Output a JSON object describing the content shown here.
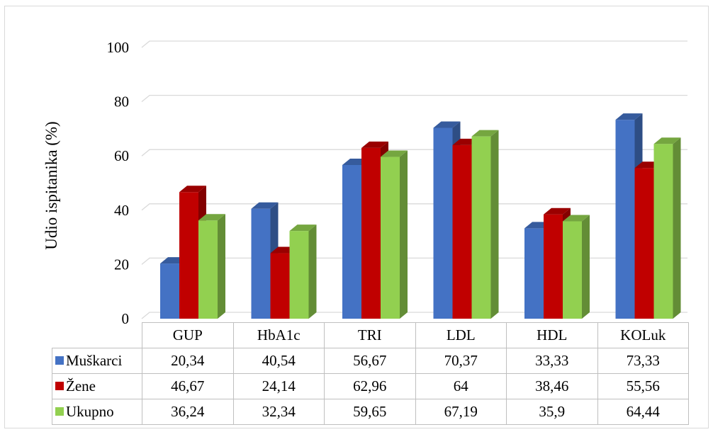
{
  "chart_data": {
    "type": "bar",
    "title": "",
    "xlabel": "",
    "ylabel": "Udio ispitanika (%)",
    "ylim": [
      0,
      100
    ],
    "yticks": [
      0,
      20,
      40,
      60,
      80,
      100
    ],
    "grid": true,
    "legend": "data-table",
    "categories": [
      "GUP",
      "HbA1c",
      "TRI",
      "LDL",
      "HDL",
      "KOLuk"
    ],
    "series": [
      {
        "name": "Muškarci",
        "color": "#4472c4",
        "values": [
          20.34,
          40.54,
          56.67,
          70.37,
          33.33,
          73.33
        ],
        "labels": [
          "20,34",
          "40,54",
          "56,67",
          "70,37",
          "33,33",
          "73,33"
        ]
      },
      {
        "name": "Žene",
        "color": "#c00000",
        "values": [
          46.67,
          24.14,
          62.96,
          64,
          38.46,
          55.56
        ],
        "labels": [
          "46,67",
          "24,14",
          "62,96",
          "64",
          "38,46",
          "55,56"
        ]
      },
      {
        "name": "Ukupno",
        "color": "#92d050",
        "values": [
          36.24,
          32.34,
          59.65,
          67.19,
          35.9,
          64.44
        ],
        "labels": [
          "36,24",
          "32,34",
          "59,65",
          "67,19",
          "35,9",
          "64,44"
        ]
      }
    ]
  }
}
